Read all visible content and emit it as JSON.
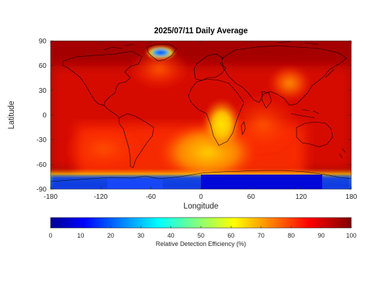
{
  "figure": {
    "title": "2025/07/11 Daily Average",
    "xlabel": "Longitude",
    "ylabel": "Latitude",
    "colorbar_label": "Relative Detection Efficiency (%)"
  },
  "axes": {
    "x_ticks": [
      -180,
      -120,
      -60,
      0,
      60,
      120,
      180
    ],
    "y_ticks": [
      90,
      60,
      30,
      0,
      -30,
      -60,
      -90
    ],
    "x_tick_labels": [
      "-180",
      "-120",
      "-60",
      "0",
      "60",
      "120",
      "180"
    ],
    "y_tick_labels": [
      "90",
      "60",
      "30",
      "0",
      "-30",
      "-60",
      "-90"
    ],
    "xlim": [
      -180,
      180
    ],
    "ylim": [
      -90,
      90
    ]
  },
  "colorbar": {
    "ticks": [
      0,
      10,
      20,
      30,
      40,
      50,
      60,
      70,
      80,
      90,
      100
    ],
    "tick_labels": [
      "0",
      "10",
      "20",
      "30",
      "40",
      "50",
      "60",
      "70",
      "80",
      "90",
      "100"
    ],
    "colormap": "jet",
    "range": [
      0,
      100
    ]
  },
  "map": {
    "projection": "equirectangular",
    "background_value_pct": 97,
    "coastline_color": "#000000"
  }
}
